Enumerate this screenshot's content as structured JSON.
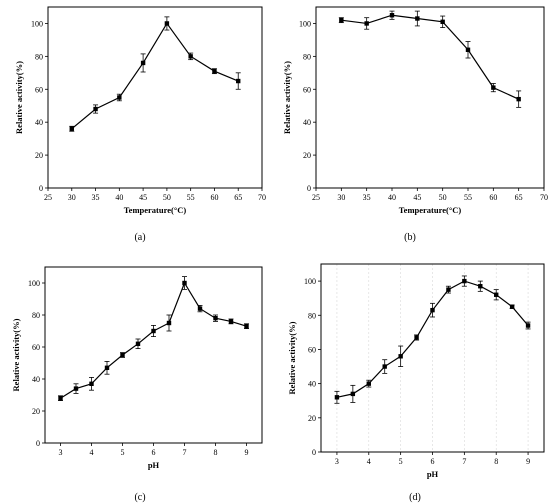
{
  "colors": {
    "line": "#000000",
    "background": "#ffffff"
  },
  "chart_data": [
    {
      "type": "line",
      "panel_label": "(a)",
      "xlabel": "Temperature(°C)",
      "ylabel": "Relative activity(%)",
      "xlim": [
        25,
        70
      ],
      "ylim": [
        0,
        110
      ],
      "xticks": [
        25,
        30,
        35,
        40,
        45,
        50,
        55,
        60,
        65,
        70
      ],
      "yticks": [
        0,
        20,
        40,
        60,
        80,
        100
      ],
      "x": [
        30,
        35,
        40,
        45,
        50,
        55,
        60,
        65
      ],
      "y": [
        36,
        48,
        55,
        76,
        100,
        80,
        71,
        65
      ],
      "err": [
        1.5,
        2.5,
        2,
        5.5,
        4,
        2,
        1.5,
        5
      ],
      "grid": false
    },
    {
      "type": "line",
      "panel_label": "(b)",
      "xlabel": "Temperature(°C)",
      "ylabel": "Relative activity(%)",
      "xlim": [
        25,
        70
      ],
      "ylim": [
        0,
        110
      ],
      "xticks": [
        25,
        30,
        35,
        40,
        45,
        50,
        55,
        60,
        65,
        70
      ],
      "yticks": [
        0,
        20,
        40,
        60,
        80,
        100
      ],
      "x": [
        30,
        35,
        40,
        45,
        50,
        55,
        60,
        65
      ],
      "y": [
        102,
        100,
        105,
        103,
        101,
        84,
        61,
        54
      ],
      "err": [
        1.5,
        3.5,
        2.5,
        4.5,
        3.5,
        5,
        2.5,
        5
      ],
      "grid": false
    },
    {
      "type": "line",
      "panel_label": "(c)",
      "xlabel": "pH",
      "ylabel": "Relative activity(%)",
      "xlim": [
        2.5,
        9.5
      ],
      "ylim": [
        0,
        110
      ],
      "xticks": [
        3,
        4,
        5,
        6,
        7,
        8,
        9
      ],
      "yticks": [
        0,
        20,
        40,
        60,
        80,
        100
      ],
      "x": [
        3,
        3.5,
        4,
        4.5,
        5,
        5.5,
        6,
        6.5,
        7,
        7.5,
        8,
        8.5,
        9
      ],
      "y": [
        28,
        34,
        37,
        47,
        55,
        62,
        70,
        75,
        100,
        84,
        78,
        76,
        73
      ],
      "err": [
        1.5,
        3,
        4,
        4,
        1.5,
        3,
        3.5,
        5,
        4,
        2,
        2,
        1.5,
        1.5
      ],
      "grid": false
    },
    {
      "type": "line",
      "panel_label": "(d)",
      "xlabel": "pH",
      "ylabel": "Relative activity(%)",
      "xlim": [
        2.5,
        9.5
      ],
      "ylim": [
        0,
        110
      ],
      "xticks": [
        3,
        4,
        5,
        6,
        7,
        8,
        9
      ],
      "yticks": [
        0,
        20,
        40,
        60,
        80,
        100
      ],
      "x": [
        3,
        3.5,
        4,
        4.5,
        5,
        5.5,
        6,
        6.5,
        7,
        7.5,
        8,
        8.5,
        9
      ],
      "y": [
        32,
        34,
        40,
        50,
        56,
        67,
        83,
        95,
        100,
        97,
        92,
        85,
        74
      ],
      "err": [
        3.5,
        5,
        2,
        4,
        6,
        1.5,
        4,
        2,
        3,
        3,
        3,
        1,
        2
      ],
      "grid": true
    }
  ]
}
